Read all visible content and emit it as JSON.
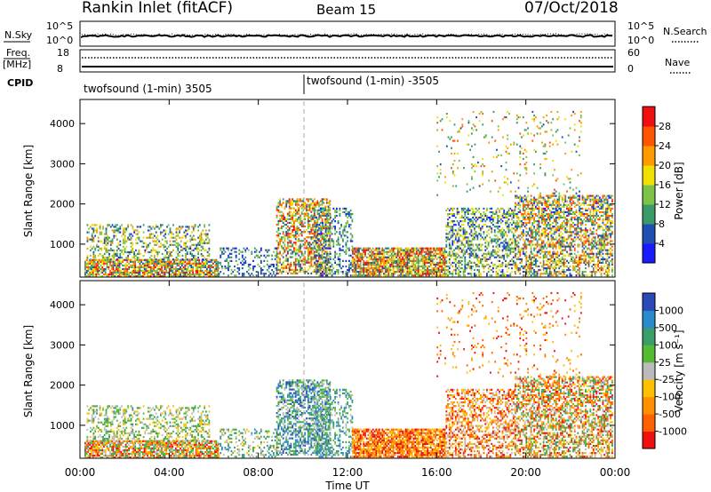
{
  "header": {
    "station": "Rankin Inlet (fitACF)",
    "beam": "Beam 15",
    "date": "07/Oct/2018"
  },
  "top_panels": {
    "nsky_label": "N.Sky",
    "nsky_ticks": [
      "10^5",
      "10^0"
    ],
    "nsearch_label": "N.Search",
    "nsearch_ticks": [
      "10^5",
      "10^0"
    ],
    "freq_label_1": "Freq.",
    "freq_label_2": "[MHz]",
    "freq_ticks": [
      "18",
      "8"
    ],
    "nave_label": "Nave",
    "nave_ticks": [
      "60",
      "0"
    ],
    "cpid_label": "CPID",
    "cpid_1": "twofsound (1-min) 3505",
    "cpid_2": "twofsound (1-min) -3505"
  },
  "colors": {
    "power": [
      "#1a1aff",
      "#1f4fb0",
      "#3a9a6a",
      "#7dc34a",
      "#f0e000",
      "#ff9a00",
      "#ff5500",
      "#ee1010"
    ],
    "velocity": [
      "#2a4ab8",
      "#2a8acb",
      "#3a9e6a",
      "#55bb33",
      "#bbbbbb",
      "#ffc000",
      "#ff9000",
      "#ff6000",
      "#f01010"
    ]
  },
  "chart_data": [
    {
      "type": "heatmap",
      "title": "Power",
      "ylabel": "Slant Range [km]",
      "xlabel": "Time UT",
      "x_ticks": [
        "00:00",
        "04:00",
        "08:00",
        "12:00",
        "16:00",
        "20:00",
        "00:00"
      ],
      "y_ticks": [
        "1000",
        "2000",
        "3000",
        "4000"
      ],
      "ylim": [
        180,
        4600
      ],
      "xlim_hours": [
        0,
        24
      ],
      "colorbar_label": "Power [dB]",
      "colorbar_ticks": [
        "4",
        "8",
        "12",
        "16",
        "20",
        "24",
        "28"
      ],
      "clim": [
        0,
        30
      ]
    },
    {
      "type": "heatmap",
      "title": "Velocity",
      "ylabel": "Slant Range [km]",
      "xlabel": "Time UT",
      "x_ticks": [
        "00:00",
        "04:00",
        "08:00",
        "12:00",
        "16:00",
        "20:00",
        "00:00"
      ],
      "y_ticks": [
        "1000",
        "2000",
        "3000",
        "4000"
      ],
      "ylim": [
        180,
        4600
      ],
      "xlim_hours": [
        0,
        24
      ],
      "colorbar_label": "Velocity [m s⁻¹]",
      "colorbar_ticks": [
        "1000",
        "500",
        "100",
        "25",
        "-25",
        "-100",
        "-500",
        "-1000"
      ]
    }
  ]
}
